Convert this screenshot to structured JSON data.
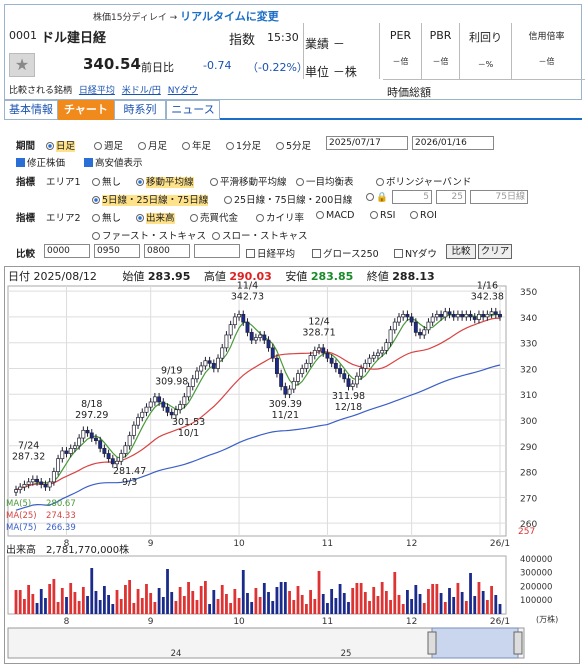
{
  "header": {
    "delay_note": "株価15分ディレイ → ",
    "realtime_link": "リアルタイムに変更",
    "code": "0001",
    "name": "ドル建日経",
    "index_label": "指数",
    "time": "15:30",
    "price": "340.54",
    "prev_label": "前日比",
    "change": "-0.74",
    "change_pct": "（-0.22%）",
    "compare_label": "比較される銘柄",
    "compare_links": [
      "日経平均",
      "米ドル/円",
      "NYダウ"
    ],
    "gyoseki": "業績 －",
    "tani": "単位 －株",
    "metrics": [
      {
        "label": "PER",
        "value": "－倍"
      },
      {
        "label": "PBR",
        "value": "－倍"
      },
      {
        "label": "利回り",
        "value": "－%"
      },
      {
        "label": "信用倍率",
        "value": "－倍"
      }
    ],
    "market_cap_label": "時価総額"
  },
  "tabs": [
    "基本情報",
    "チャート",
    "時系列",
    "ニュース"
  ],
  "settings": {
    "period_label": "期間",
    "periods": [
      "日足",
      "週足",
      "月足",
      "年足",
      "1分足",
      "5分足"
    ],
    "date_from": "2025/07/17",
    "date_to": "2026/01/16",
    "opt_adjusted": "修正株価",
    "opt_highlow": "高安値表示",
    "indicator_label": "指標",
    "area1_label": "エリア1",
    "area1_opts": [
      "無し",
      "移動平均線",
      "平滑移動平均線",
      "一目均衡表",
      "ボリンジャーバンド"
    ],
    "ma_opts": [
      "5日線・25日線・75日線",
      "25日線・75日線・200日線"
    ],
    "ma_custom": [
      "5",
      "25",
      "75日線"
    ],
    "area2_label": "エリア2",
    "area2_opts": [
      "無し",
      "出来高",
      "売買代金",
      "カイリ率",
      "MACD",
      "RSI",
      "ROI"
    ],
    "area2_opts2": [
      "ファースト・ストキャス",
      "スロー・ストキャス"
    ],
    "compare_label": "比較",
    "compare_inputs": [
      "0000",
      "0950",
      "0800",
      ""
    ],
    "compare_checks": [
      "日経平均",
      "グロース250",
      "NYダウ"
    ],
    "btn_compare": "比較",
    "btn_clear": "クリア"
  },
  "ohlc": {
    "date_label": "日付",
    "date": "2025/08/12",
    "open_label": "始値",
    "open": "283.95",
    "high_label": "高値",
    "high": "290.03",
    "low_label": "安値",
    "low": "283.85",
    "close_label": "終値",
    "close": "288.13"
  },
  "colors": {
    "up": "#ffffff",
    "down": "#1a2b8c",
    "ma5": "#4a9a3a",
    "ma25": "#d94444",
    "ma75": "#3a5fc8",
    "volume": "#d33",
    "volume_down": "#1a2b8c",
    "highlight": "#fde28a",
    "accent": "#f08a1c"
  },
  "chart_data": {
    "type": "candlestick",
    "y_ticks": [
      250,
      260,
      270,
      280,
      290,
      300,
      310,
      320,
      330,
      340,
      350
    ],
    "ylim": [
      255,
      352
    ],
    "x_tick_labels": [
      "8",
      "9",
      "10",
      "11",
      "12",
      "26/1"
    ],
    "x_tick_index": [
      12,
      32,
      53,
      74,
      94,
      115
    ],
    "annotations": [
      {
        "label": "7/24",
        "value": "287.32"
      },
      {
        "label": "8/18",
        "value": "297.29"
      },
      {
        "label": "281.47",
        "value": "9/3"
      },
      {
        "label": "9/19",
        "value": "309.98"
      },
      {
        "label": "301.53",
        "value": "10/1"
      },
      {
        "label": "11/4",
        "value": "342.73"
      },
      {
        "label": "309.39",
        "value": "11/21"
      },
      {
        "label": "12/4",
        "value": "328.71"
      },
      {
        "label": "311.98",
        "value": "12/18"
      },
      {
        "label": "1/16",
        "value": "342.38"
      }
    ],
    "ma_legend": [
      {
        "name": "MA(5)",
        "value": "280.67"
      },
      {
        "name": "MA(25)",
        "value": "274.33"
      },
      {
        "name": "MA(75)",
        "value": "266.39"
      }
    ],
    "last_low_marker": "257",
    "closes": [
      273,
      274,
      275,
      276,
      277,
      276,
      275,
      274,
      276,
      280,
      285,
      288,
      287,
      289,
      290,
      293,
      296,
      295,
      293,
      292,
      289,
      287,
      285,
      283,
      284,
      287,
      290,
      294,
      298,
      301,
      303,
      305,
      307,
      309,
      307,
      305,
      303,
      302,
      304,
      306,
      309,
      313,
      316,
      319,
      321,
      323,
      322,
      320,
      324,
      328,
      333,
      337,
      340,
      341,
      338,
      334,
      331,
      332,
      333,
      331,
      328,
      324,
      318,
      313,
      310,
      312,
      315,
      318,
      320,
      322,
      325,
      327,
      328,
      326,
      324,
      322,
      320,
      318,
      316,
      313,
      314,
      317,
      320,
      322,
      324,
      325,
      326,
      327,
      330,
      335,
      338,
      340,
      341,
      340,
      338,
      334,
      333,
      335,
      338,
      340,
      341,
      340,
      342,
      341,
      340,
      341,
      340,
      341,
      340,
      339,
      341,
      340,
      341,
      342,
      341,
      340
    ],
    "volume": {
      "label": "出来高",
      "last": "2,781,770,000株",
      "y_ticks": [
        100000,
        200000,
        300000,
        400000
      ],
      "unit": "(万株)"
    },
    "nav_labels": [
      "24",
      "25"
    ]
  }
}
